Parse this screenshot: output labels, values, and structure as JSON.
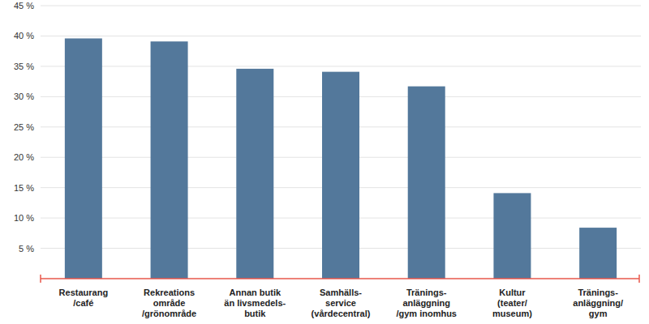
{
  "chart_data": {
    "type": "bar",
    "categories": [
      "Restaurang\n/café",
      "Rekreations\nområde\n/grönområde",
      "Annan butik\nän livsmedels-\nbutik",
      "Samhälls-\nservice\n(vårdecentral)",
      "Tränings-\nanläggning\n/gym inomhus",
      "Kultur\n(teater/\nmuseum)",
      "Tränings-\nanläggning/\ngym"
    ],
    "values": [
      39.6,
      39.1,
      34.6,
      34.1,
      31.7,
      14.1,
      8.4
    ],
    "color": "#53789b",
    "ylim": [
      0,
      45
    ],
    "yticks": [
      {
        "value": 5,
        "label": "5 %"
      },
      {
        "value": 10,
        "label": "10 %"
      },
      {
        "value": 15,
        "label": "15 %"
      },
      {
        "value": 20,
        "label": "20 %"
      },
      {
        "value": 25,
        "label": "25 %"
      },
      {
        "value": 30,
        "label": "30 %"
      },
      {
        "value": 35,
        "label": "35 %"
      },
      {
        "value": 40,
        "label": "40 %"
      },
      {
        "value": 45,
        "label": "45 %"
      }
    ],
    "grid": true
  }
}
